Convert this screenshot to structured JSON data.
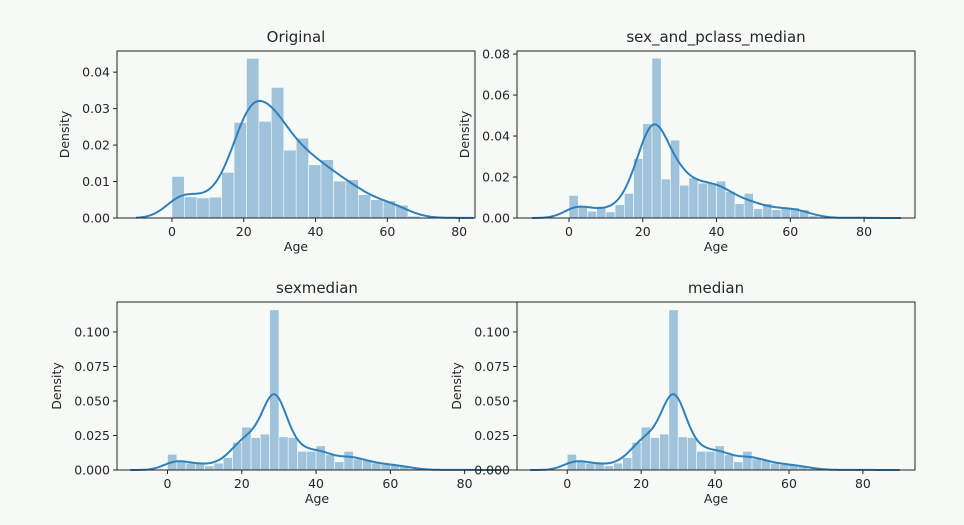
{
  "chart_data": [
    {
      "type": "bar",
      "subtype": "histogram+kde",
      "title": "Original",
      "xlabel": "Age",
      "ylabel": "Density",
      "xlim": [
        -15.3,
        84.4
      ],
      "ylim": [
        0,
        0.0458
      ],
      "xticks": [
        0,
        20,
        40,
        60,
        80
      ],
      "yticks": [
        "0.00",
        "0.01",
        "0.02",
        "0.03",
        "0.04"
      ],
      "bin_start": 0,
      "bin_width": 3.46,
      "values": [
        0.0114,
        0.0058,
        0.0055,
        0.0057,
        0.0125,
        0.0262,
        0.0438,
        0.0265,
        0.0358,
        0.0186,
        0.0219,
        0.0146,
        0.016,
        0.0101,
        0.0105,
        0.0064,
        0.005,
        0.0047,
        0.0035,
        0.0005,
        0.0001,
        0,
        0.0001
      ],
      "kde_bandwidth": 4.2,
      "bar_color": "#9ec3db",
      "line_color": "#3180ba"
    },
    {
      "type": "bar",
      "subtype": "histogram+kde",
      "title": "sex_and_pclass_median",
      "xlabel": "Age",
      "ylabel": "Density",
      "xlim": [
        -14.1,
        93.8
      ],
      "ylim": [
        0,
        0.0815
      ],
      "xticks": [
        0,
        20,
        40,
        60,
        80
      ],
      "yticks": [
        "0.00",
        "0.02",
        "0.04",
        "0.06",
        "0.08"
      ],
      "bin_start": 0,
      "bin_width": 2.5,
      "values": [
        0.011,
        0.0055,
        0.0033,
        0.0057,
        0.003,
        0.0065,
        0.012,
        0.029,
        0.046,
        0.078,
        0.019,
        0.038,
        0.016,
        0.0195,
        0.017,
        0.017,
        0.018,
        0.013,
        0.007,
        0.012,
        0.0045,
        0.007,
        0.004,
        0.005,
        0.005,
        0.004,
        0.001,
        0.0005,
        0,
        0,
        0,
        0.0003
      ],
      "kde_bandwidth": 3.3,
      "bar_color": "#9ec3db",
      "line_color": "#3180ba"
    },
    {
      "type": "bar",
      "subtype": "histogram+kde",
      "title": "sexmedian",
      "xlabel": "Age",
      "ylabel": "Density",
      "xlim": [
        -13.6,
        94.1
      ],
      "ylim": [
        0,
        0.1217
      ],
      "xticks": [
        0,
        20,
        40,
        60,
        80
      ],
      "yticks": [
        "0.000",
        "0.025",
        "0.050",
        "0.075",
        "0.100"
      ],
      "bin_start": 0,
      "bin_width": 2.5,
      "values": [
        0.0114,
        0.006,
        0.005,
        0.005,
        0.003,
        0.005,
        0.009,
        0.02,
        0.031,
        0.0235,
        0.026,
        0.116,
        0.024,
        0.0235,
        0.0135,
        0.0135,
        0.0175,
        0.011,
        0.006,
        0.0135,
        0.008,
        0.007,
        0.005,
        0.004,
        0.004,
        0.003,
        0.001,
        0.0005,
        0,
        0,
        0,
        0.0003
      ],
      "kde_bandwidth": 3.0,
      "bar_color": "#9ec3db",
      "line_color": "#3180ba"
    },
    {
      "type": "bar",
      "subtype": "histogram+kde",
      "title": "median",
      "xlabel": "Age",
      "ylabel": "Density",
      "xlim": [
        -13.6,
        94.1
      ],
      "ylim": [
        0,
        0.1217
      ],
      "xticks": [
        0,
        20,
        40,
        60,
        80
      ],
      "yticks": [
        "0.000",
        "0.025",
        "0.050",
        "0.075",
        "0.100"
      ],
      "bin_start": 0,
      "bin_width": 2.5,
      "values": [
        0.0114,
        0.006,
        0.005,
        0.005,
        0.003,
        0.005,
        0.009,
        0.02,
        0.031,
        0.0235,
        0.026,
        0.116,
        0.024,
        0.0235,
        0.0135,
        0.0135,
        0.0175,
        0.011,
        0.006,
        0.0135,
        0.008,
        0.007,
        0.005,
        0.004,
        0.004,
        0.003,
        0.001,
        0.0005,
        0,
        0,
        0,
        0.0003
      ],
      "kde_bandwidth": 3.0,
      "bar_color": "#9ec3db",
      "line_color": "#3180ba"
    }
  ]
}
